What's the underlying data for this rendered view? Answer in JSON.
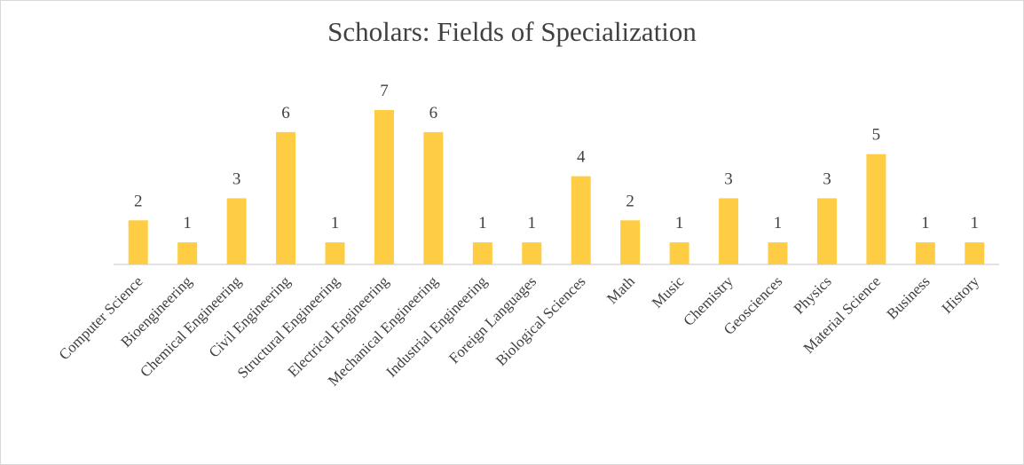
{
  "chart_data": {
    "type": "bar",
    "title": "Scholars: Fields of Specialization",
    "categories": [
      "Computer Science",
      "Bioengineering",
      "Chemical Engineering",
      "Civil Engineering",
      "Structural Engineering",
      "Electrical Engineering",
      "Mechanical Engineering",
      "Industrial Engineering",
      "Foreign Languages",
      "Biological Sciences",
      "Math",
      "Music",
      "Chemistry",
      "Geosciences",
      "Physics",
      "Material Science",
      "Business",
      "History"
    ],
    "values": [
      2,
      1,
      3,
      6,
      1,
      7,
      6,
      1,
      1,
      4,
      2,
      1,
      3,
      1,
      3,
      5,
      1,
      1
    ],
    "color": "#ffcd44",
    "ylim": [
      0,
      7
    ]
  }
}
